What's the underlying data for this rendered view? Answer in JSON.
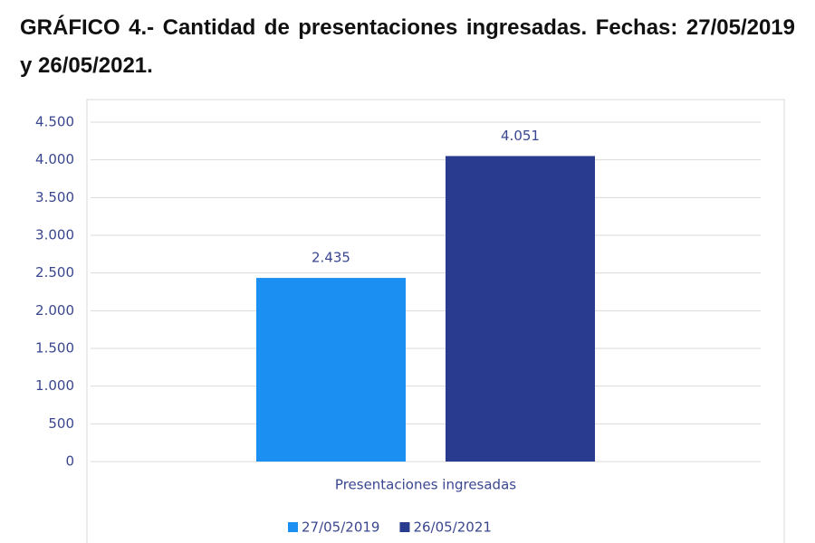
{
  "chart_data": {
    "type": "bar",
    "title": "GRÁFICO 4.- Cantidad de presentaciones ingresadas. Fechas: 27/05/2019 y 26/05/2021.",
    "categories": [
      "Presentaciones ingresadas"
    ],
    "series": [
      {
        "name": "27/05/2019",
        "color": "#1b8ff2",
        "values": [
          2435
        ],
        "value_labels": [
          "2.435"
        ]
      },
      {
        "name": "26/05/2021",
        "color": "#283b8e",
        "values": [
          4051
        ],
        "value_labels": [
          "4.051"
        ]
      }
    ],
    "ylim": [
      0,
      4500
    ],
    "yticks": [
      0,
      500,
      {
        "value": 1000,
        "label": "1.000"
      },
      {
        "value": 1500,
        "label": "1.500"
      },
      {
        "value": 2000,
        "label": "2.000"
      },
      {
        "value": 2500,
        "label": "2.500"
      },
      {
        "value": 3000,
        "label": "3.000"
      },
      {
        "value": 3500,
        "label": "3.500"
      },
      {
        "value": 4000,
        "label": "4.000"
      },
      {
        "value": 4500,
        "label": "4.500"
      }
    ],
    "grid": true,
    "legend": "bottom"
  }
}
